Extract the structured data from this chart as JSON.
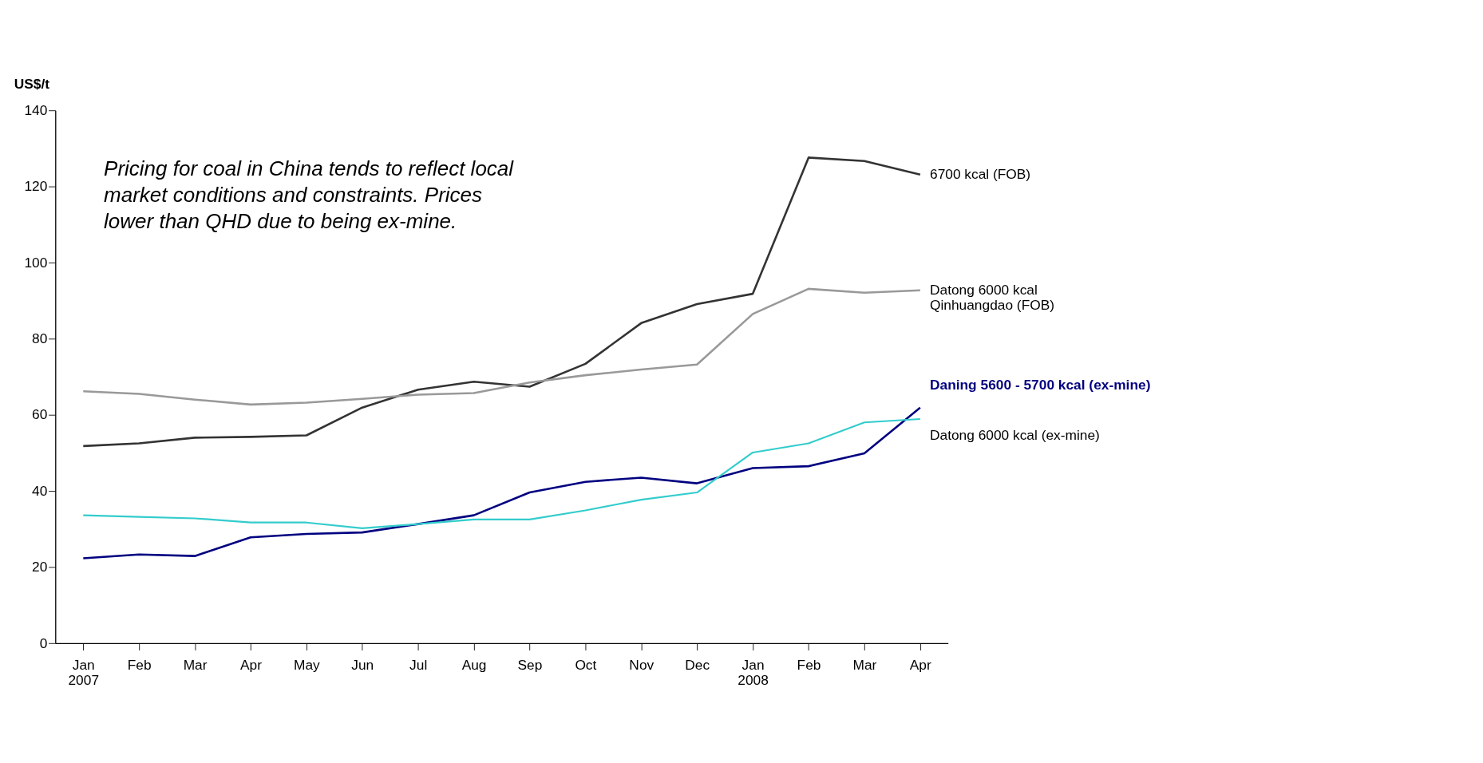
{
  "chart_data": {
    "type": "line",
    "ylabel": "US$/t",
    "categories": [
      "Jan 2007",
      "Feb",
      "Mar",
      "Apr",
      "May",
      "Jun",
      "Jul",
      "Aug",
      "Sep",
      "Oct",
      "Nov",
      "Dec",
      "Jan 2008",
      "Feb",
      "Mar",
      "Apr"
    ],
    "series": [
      {
        "name": "6700 kcal (FOB)",
        "color": "#333333",
        "values": [
          51.8,
          52.5,
          54,
          54.2,
          54.6,
          61.9,
          66.6,
          68.7,
          67.4,
          73.4,
          84.1,
          89.1,
          91.8,
          127.6,
          126.7,
          123.1
        ]
      },
      {
        "name": "Datong 6000 kcal Qinhuangdao (FOB)",
        "color": "#999999",
        "values": [
          66.2,
          65.5,
          64,
          62.7,
          63.2,
          64.2,
          65.3,
          65.7,
          68.5,
          70.4,
          71.9,
          73.2,
          86.5,
          93.1,
          92.1,
          92.7
        ]
      },
      {
        "name": "Daning 5600 - 5700 kcal (ex-mine)",
        "color": "#000080",
        "values": [
          22.3,
          23.3,
          22.9,
          27.8,
          28.7,
          29.1,
          31.3,
          33.6,
          39.6,
          42.4,
          43.5,
          42,
          46,
          46.5,
          49.9,
          61.9
        ]
      },
      {
        "name": "Datong 6000 kcal (ex-mine)",
        "color": "#33cccc",
        "values": [
          33.6,
          33.2,
          32.8,
          31.7,
          31.7,
          30.2,
          31.3,
          32.5,
          32.5,
          34.9,
          37.7,
          39.6,
          50.1,
          52.5,
          58,
          58.9
        ]
      }
    ],
    "ylim": [
      0,
      140
    ],
    "yticks": [
      0,
      20,
      40,
      60,
      80,
      100,
      120,
      140
    ],
    "grid": false,
    "legend": false,
    "marker": "none",
    "line_style": "solid",
    "annotations": [
      "Pricing for coal in China tends to reflect local\nmarket conditions and constraints. Prices\nlower than QHD due to being ex-mine."
    ]
  }
}
